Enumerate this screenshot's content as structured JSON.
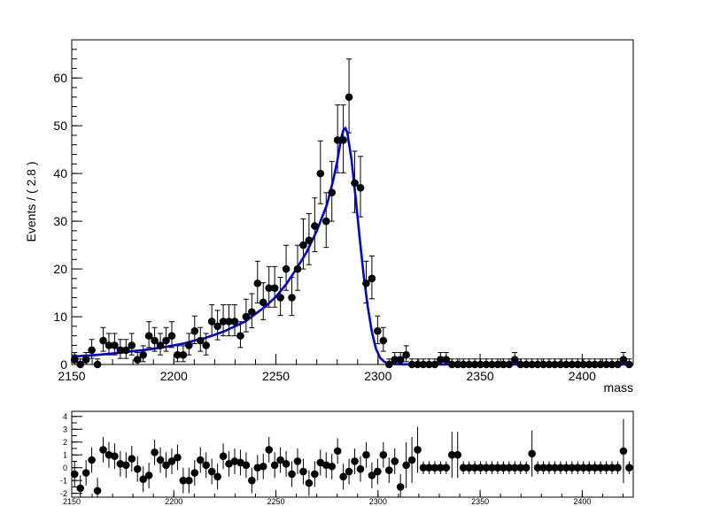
{
  "chart_data": [
    {
      "type": "scatter",
      "ylabel": "Events / ( 2.8 )",
      "xlabel": "mass",
      "xlim": [
        2150,
        2425
      ],
      "ylim": [
        0,
        68
      ],
      "x_ticks": [
        "2150",
        "2200",
        "2250",
        "2300",
        "2350",
        "2400"
      ],
      "y_ticks": [
        "0",
        "10",
        "20",
        "30",
        "40",
        "50",
        "60"
      ],
      "series": [
        {
          "kind": "points_with_errors",
          "color": "#000000",
          "x": [
            2151.4,
            2154.2,
            2157.0,
            2159.8,
            2162.6,
            2165.4,
            2168.2,
            2171.0,
            2173.8,
            2176.6,
            2179.4,
            2182.2,
            2185.0,
            2187.8,
            2190.6,
            2193.4,
            2196.2,
            2199.0,
            2201.8,
            2204.6,
            2207.4,
            2210.2,
            2213.0,
            2215.8,
            2218.6,
            2221.4,
            2224.2,
            2227.0,
            2229.8,
            2232.6,
            2235.4,
            2238.2,
            2241.0,
            2243.8,
            2246.6,
            2249.4,
            2252.2,
            2255.0,
            2257.8,
            2260.6,
            2263.4,
            2266.2,
            2269.0,
            2271.8,
            2274.6,
            2277.4,
            2280.2,
            2283.0,
            2285.8,
            2288.6,
            2291.4,
            2294.2,
            2297.0,
            2299.8,
            2302.6,
            2305.4,
            2308.2,
            2311.0,
            2313.8,
            2316.6,
            2319.4,
            2322.2,
            2325.0,
            2327.8,
            2330.6,
            2333.4,
            2336.2,
            2339.0,
            2341.8,
            2344.6,
            2347.4,
            2350.2,
            2353.0,
            2355.8,
            2358.6,
            2361.4,
            2364.2,
            2367.0,
            2369.8,
            2372.6,
            2375.4,
            2378.2,
            2381.0,
            2383.8,
            2386.6,
            2389.4,
            2392.2,
            2395.0,
            2397.8,
            2400.6,
            2403.4,
            2406.2,
            2409.0,
            2411.8,
            2414.6,
            2417.4,
            2420.2,
            2423.0
          ],
          "y": [
            1,
            0,
            1,
            3,
            0,
            5,
            4,
            4,
            3,
            3,
            4,
            1,
            2,
            6,
            5,
            4,
            5,
            6,
            2,
            2,
            4,
            7,
            5,
            4,
            9,
            8,
            9,
            9,
            9,
            6,
            10,
            11,
            17,
            13,
            16,
            16,
            14,
            20,
            14,
            20,
            25,
            26,
            29,
            40,
            30,
            36,
            47,
            47,
            56,
            38,
            37,
            17,
            18,
            7,
            5,
            0,
            1,
            1,
            2,
            0,
            0,
            0,
            0,
            0,
            1,
            1,
            0,
            0,
            0,
            0,
            0,
            0,
            0,
            0,
            0,
            0,
            0,
            1,
            0,
            0,
            0,
            0,
            0,
            0,
            0,
            0,
            0,
            0,
            0,
            0,
            0,
            0,
            0,
            0,
            0,
            0,
            1,
            0
          ]
        },
        {
          "kind": "fit_curve",
          "color": "#0000e0",
          "x": [
            2150,
            2155,
            2160,
            2165,
            2170,
            2175,
            2180,
            2185,
            2190,
            2195,
            2200,
            2205,
            2210,
            2215,
            2220,
            2225,
            2230,
            2235,
            2240,
            2245,
            2250,
            2255,
            2260,
            2265,
            2270,
            2275,
            2278,
            2280,
            2282,
            2283,
            2284,
            2285,
            2287,
            2289,
            2291,
            2293,
            2295,
            2297,
            2299,
            2301,
            2303,
            2305,
            2308,
            2312,
            2320,
            2340,
            2360,
            2380,
            2400,
            2425
          ],
          "y": [
            1.6,
            1.8,
            1.9,
            2.1,
            2.3,
            2.5,
            2.8,
            3.0,
            3.3,
            3.6,
            4.0,
            4.4,
            5.0,
            5.5,
            6.2,
            7.0,
            8.0,
            9.0,
            10.6,
            12.2,
            14.2,
            16.8,
            20.0,
            23.5,
            28.0,
            33.5,
            38.5,
            42.5,
            47.5,
            49.0,
            49.5,
            48.5,
            43.0,
            35.0,
            26.5,
            18.5,
            12.0,
            6.8,
            3.3,
            1.4,
            0.6,
            0.2,
            0.08,
            0.03,
            0.01,
            0.01,
            0.01,
            0.01,
            0.01,
            0.01
          ]
        }
      ]
    },
    {
      "type": "scatter",
      "xlabel": "",
      "ylabel": "",
      "xlim": [
        2150,
        2425
      ],
      "ylim": [
        -2.3,
        4.4
      ],
      "x_ticks": [
        "2150",
        "2200",
        "2250",
        "2300",
        "2350",
        "2400"
      ],
      "y_ticks": [
        "-2",
        "-1",
        "0",
        "1",
        "2",
        "3",
        "4"
      ],
      "series": [
        {
          "kind": "points_with_errors",
          "color": "#000000",
          "x": [
            2151.4,
            2154.2,
            2157.0,
            2159.8,
            2162.6,
            2165.4,
            2168.2,
            2171.0,
            2173.8,
            2176.6,
            2179.4,
            2182.2,
            2185.0,
            2187.8,
            2190.6,
            2193.4,
            2196.2,
            2199.0,
            2201.8,
            2204.6,
            2207.4,
            2210.2,
            2213.0,
            2215.8,
            2218.6,
            2221.4,
            2224.2,
            2227.0,
            2229.8,
            2232.6,
            2235.4,
            2238.2,
            2241.0,
            2243.8,
            2246.6,
            2249.4,
            2252.2,
            2255.0,
            2257.8,
            2260.6,
            2263.4,
            2266.2,
            2269.0,
            2271.8,
            2274.6,
            2277.4,
            2280.2,
            2283.0,
            2285.8,
            2288.6,
            2291.4,
            2294.2,
            2297.0,
            2299.8,
            2302.6,
            2305.4,
            2308.2,
            2311.0,
            2313.8,
            2316.6,
            2319.4,
            2322.2,
            2325.0,
            2327.8,
            2330.6,
            2333.4,
            2336.2,
            2339.0,
            2341.8,
            2344.6,
            2347.4,
            2350.2,
            2353.0,
            2355.8,
            2358.6,
            2361.4,
            2364.2,
            2367.0,
            2369.8,
            2372.6,
            2375.4,
            2378.2,
            2381.0,
            2383.8,
            2386.6,
            2389.4,
            2392.2,
            2395.0,
            2397.8,
            2400.6,
            2403.4,
            2406.2,
            2409.0,
            2411.8,
            2414.6,
            2417.4,
            2420.2,
            2423.0
          ],
          "y": [
            -0.5,
            -1.6,
            -0.4,
            0.6,
            -1.8,
            1.4,
            1.0,
            0.9,
            0.3,
            0.2,
            0.7,
            -0.1,
            -0.9,
            -0.6,
            1.2,
            0.6,
            0.2,
            0.5,
            0.8,
            -1.0,
            -1.0,
            -0.4,
            0.6,
            0.2,
            -0.3,
            -0.7,
            0.9,
            0.3,
            0.5,
            0.4,
            0.2,
            -1.0,
            0.0,
            0.1,
            1.4,
            0.2,
            0.6,
            0.3,
            -0.5,
            0.5,
            -0.3,
            -1.2,
            -0.5,
            0.4,
            0.2,
            0.1,
            1.3,
            -0.7,
            -0.3,
            0.5,
            -0.1,
            1.0,
            -0.6,
            -0.3,
            1.0,
            -0.2,
            0.5,
            -1.5,
            0.2,
            0.6,
            1.4,
            0.0,
            0.0,
            0.0,
            0.0,
            0.0,
            1.0,
            1.0,
            0.0,
            0.0,
            0.0,
            0.0,
            0.0,
            0.0,
            0.0,
            0.0,
            0.0,
            0.0,
            0.0,
            0.0,
            1.1,
            0.0,
            0.0,
            0.0,
            0.0,
            0.0,
            0.0,
            0.0,
            0.0,
            0.0,
            0.0,
            0.0,
            0.0,
            0.0,
            0.0,
            0.0,
            1.3,
            0.0
          ],
          "yerr": [
            1.0,
            1.0,
            1.0,
            1.0,
            1.0,
            1.0,
            1.0,
            1.0,
            1.0,
            1.0,
            1.0,
            1.0,
            1.0,
            1.0,
            1.0,
            1.0,
            1.0,
            1.0,
            1.0,
            1.0,
            1.0,
            1.0,
            1.0,
            1.0,
            1.0,
            1.0,
            1.0,
            1.0,
            1.0,
            1.0,
            1.0,
            1.0,
            1.0,
            1.0,
            1.0,
            1.0,
            1.0,
            1.0,
            1.0,
            1.0,
            1.0,
            1.0,
            1.0,
            1.0,
            1.0,
            1.0,
            1.0,
            1.0,
            1.0,
            1.0,
            1.0,
            1.0,
            1.0,
            1.0,
            1.0,
            1.0,
            1.0,
            1.0,
            1.8,
            1.8,
            1.8,
            0.5,
            0.5,
            0.5,
            0.5,
            0.5,
            1.8,
            1.8,
            0.5,
            0.5,
            0.5,
            0.5,
            0.5,
            0.5,
            0.5,
            0.5,
            0.5,
            0.5,
            0.5,
            0.5,
            1.8,
            0.5,
            0.5,
            0.5,
            0.5,
            0.5,
            0.5,
            0.5,
            0.5,
            0.5,
            0.5,
            0.5,
            0.5,
            0.5,
            0.5,
            0.5,
            2.5,
            0.5
          ]
        }
      ]
    }
  ]
}
